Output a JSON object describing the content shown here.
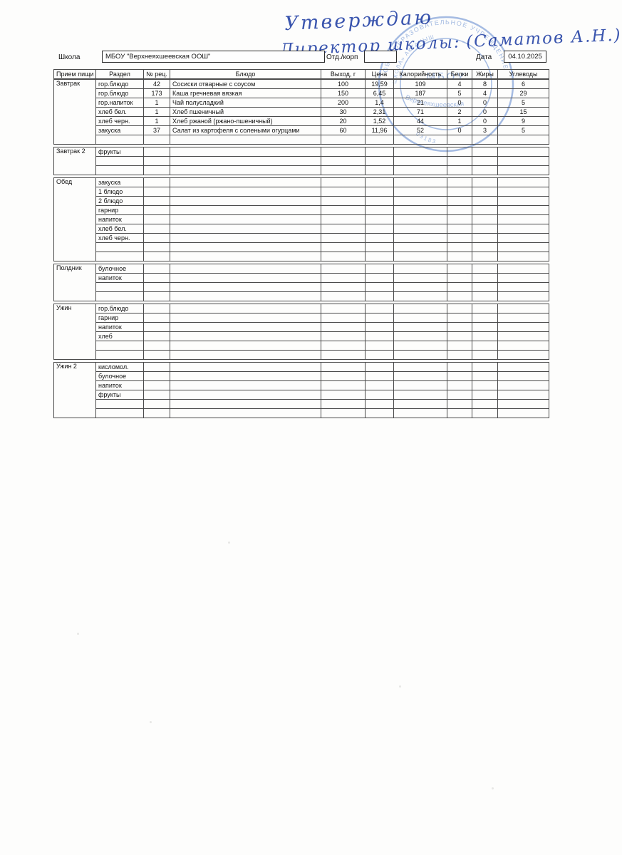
{
  "colors": {
    "ink_blue": "#3a55ae",
    "stamp_blue": "#5c87cf",
    "table_border": "#4a4a4a"
  },
  "approval": {
    "line1": "Утверждаю",
    "line2": "Директор школы:",
    "name": "(Саматов А.Н.)"
  },
  "stamp": {
    "ring_line1": "ОБЩЕОБРАЗОВАТЕЛЬНОЕ УЧРЕЖДЕНИЕ",
    "ring_line2": "ШКОЛА» АКТАНЫШ",
    "number_fragment": "03183",
    "center_line1": "МБОУ",
    "center_line2": "Верхнеяхшеевская"
  },
  "form": {
    "school_label": "Школа",
    "school_value": "МБОУ \"Верхнеяхшеевская ООШ\"",
    "dept_label": "Отд./корп",
    "dept_value": "",
    "date_label": "Дата",
    "date_value": "04.10.2025"
  },
  "table": {
    "headers": [
      "Прием пищи",
      "Раздел",
      "№ рец.",
      "Блюдо",
      "Выход, г",
      "Цена",
      "Калорийность",
      "Белки",
      "Жиры",
      "Углеводы"
    ],
    "sections": [
      {
        "meal": "Завтрак",
        "rows": [
          [
            "гор.блюдо",
            "42",
            "Сосиски отварные с соусом",
            "100",
            "19,59",
            "109",
            "4",
            "8",
            "6"
          ],
          [
            "гор.блюдо",
            "173",
            "Каша гречневая вязкая",
            "150",
            "6,45",
            "187",
            "5",
            "4",
            "29"
          ],
          [
            "гор.напиток",
            "1",
            "Чай полусладкий",
            "200",
            "1,4",
            "21",
            "0",
            "0",
            "5"
          ],
          [
            "хлеб бел.",
            "1",
            "Хлеб пшеничный",
            "30",
            "2,31",
            "71",
            "2",
            "0",
            "15"
          ],
          [
            "хлеб черн.",
            "1",
            "Хлеб ржаной (ржано-пшеничный)",
            "20",
            "1,52",
            "44",
            "1",
            "0",
            "9"
          ],
          [
            "закуска",
            "37",
            "Салат из картофеля с солеными огурцами",
            "60",
            "11,96",
            "52",
            "0",
            "3",
            "5"
          ],
          [
            "",
            "",
            "",
            "",
            "",
            "",
            "",
            "",
            ""
          ]
        ]
      },
      {
        "meal": "Завтрак 2",
        "rows": [
          [
            "фрукты",
            "",
            "",
            "",
            "",
            "",
            "",
            "",
            ""
          ],
          [
            "",
            "",
            "",
            "",
            "",
            "",
            "",
            "",
            ""
          ],
          [
            "",
            "",
            "",
            "",
            "",
            "",
            "",
            "",
            ""
          ]
        ]
      },
      {
        "meal": "Обед",
        "rows": [
          [
            "закуска",
            "",
            "",
            "",
            "",
            "",
            "",
            "",
            ""
          ],
          [
            "1 блюдо",
            "",
            "",
            "",
            "",
            "",
            "",
            "",
            ""
          ],
          [
            "2 блюдо",
            "",
            "",
            "",
            "",
            "",
            "",
            "",
            ""
          ],
          [
            "гарнир",
            "",
            "",
            "",
            "",
            "",
            "",
            "",
            ""
          ],
          [
            "напиток",
            "",
            "",
            "",
            "",
            "",
            "",
            "",
            ""
          ],
          [
            "хлеб бел.",
            "",
            "",
            "",
            "",
            "",
            "",
            "",
            ""
          ],
          [
            "хлеб черн.",
            "",
            "",
            "",
            "",
            "",
            "",
            "",
            ""
          ],
          [
            "",
            "",
            "",
            "",
            "",
            "",
            "",
            "",
            ""
          ],
          [
            "",
            "",
            "",
            "",
            "",
            "",
            "",
            "",
            ""
          ]
        ]
      },
      {
        "meal": "Полдник",
        "rows": [
          [
            "булочное",
            "",
            "",
            "",
            "",
            "",
            "",
            "",
            ""
          ],
          [
            "напиток",
            "",
            "",
            "",
            "",
            "",
            "",
            "",
            ""
          ],
          [
            "",
            "",
            "",
            "",
            "",
            "",
            "",
            "",
            ""
          ],
          [
            "",
            "",
            "",
            "",
            "",
            "",
            "",
            "",
            ""
          ]
        ]
      },
      {
        "meal": "Ужин",
        "rows": [
          [
            "гор.блюдо",
            "",
            "",
            "",
            "",
            "",
            "",
            "",
            ""
          ],
          [
            "гарнир",
            "",
            "",
            "",
            "",
            "",
            "",
            "",
            ""
          ],
          [
            "напиток",
            "",
            "",
            "",
            "",
            "",
            "",
            "",
            ""
          ],
          [
            "хлеб",
            "",
            "",
            "",
            "",
            "",
            "",
            "",
            ""
          ],
          [
            "",
            "",
            "",
            "",
            "",
            "",
            "",
            "",
            ""
          ],
          [
            "",
            "",
            "",
            "",
            "",
            "",
            "",
            "",
            ""
          ]
        ]
      },
      {
        "meal": "Ужин 2",
        "rows": [
          [
            "кисломол.",
            "",
            "",
            "",
            "",
            "",
            "",
            "",
            ""
          ],
          [
            "булочное",
            "",
            "",
            "",
            "",
            "",
            "",
            "",
            ""
          ],
          [
            "напиток",
            "",
            "",
            "",
            "",
            "",
            "",
            "",
            ""
          ],
          [
            "фрукты",
            "",
            "",
            "",
            "",
            "",
            "",
            "",
            ""
          ],
          [
            "",
            "",
            "",
            "",
            "",
            "",
            "",
            "",
            ""
          ],
          [
            "",
            "",
            "",
            "",
            "",
            "",
            "",
            "",
            ""
          ]
        ]
      }
    ]
  }
}
